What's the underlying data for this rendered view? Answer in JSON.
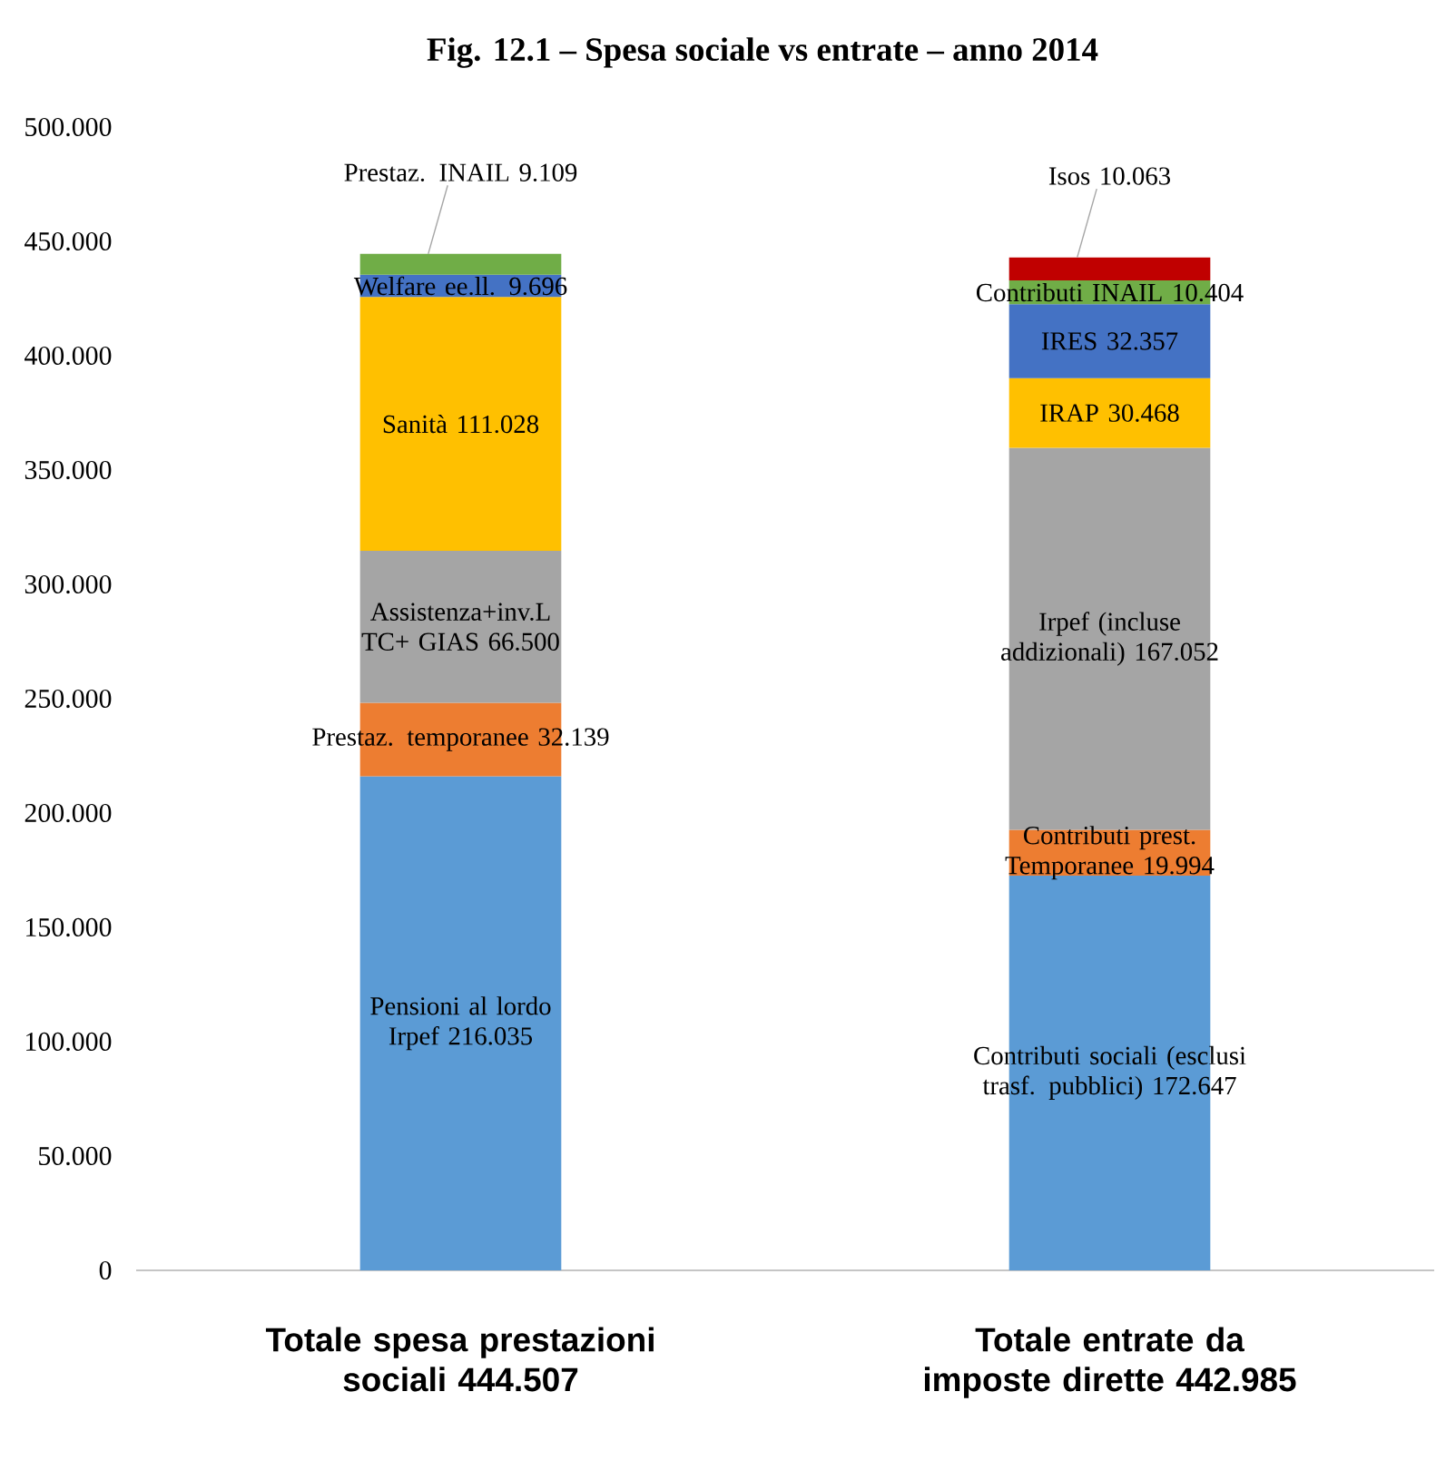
{
  "chart_data": {
    "type": "bar",
    "stacked": true,
    "title": "Fig. 12.1 – Spesa sociale vs entrate – anno 2014",
    "categories": [
      "Totale spesa prestazioni sociali 444.507",
      "Totale entrate da imposte dirette 442.985"
    ],
    "series": [
      {
        "color": "#5b9bd5",
        "values": [
          216.035,
          172.647
        ],
        "value_labels": [
          "Pensioni al lordo Irpef 216.035",
          "Contributi sociali (esclusi trasf. pubblici) 172.647"
        ]
      },
      {
        "color": "#ed7d31",
        "values": [
          32.139,
          19.994
        ],
        "value_labels": [
          "Prestaz. temporanee 32.139",
          "Contributi prest. Temporanee 19.994"
        ]
      },
      {
        "color": "#a5a5a5",
        "values": [
          66.5,
          167.052
        ],
        "value_labels": [
          "Assistenza+inv.L TC+ GIAS 66.500",
          "Irpef (incluse addizionali) 167.052"
        ]
      },
      {
        "color": "#ffc000",
        "values": [
          111.028,
          30.468
        ],
        "value_labels": [
          "Sanità 111.028",
          "IRAP 30.468"
        ]
      },
      {
        "color": "#4472c4",
        "values": [
          9.696,
          32.357
        ],
        "value_labels": [
          "Welfare ee.ll. 9.696",
          "IRES 32.357"
        ]
      },
      {
        "color": "#70ad47",
        "values": [
          9.109,
          10.404
        ],
        "value_labels": [
          "Prestaz. INAIL 9.109",
          "Contributi INAIL 10.404"
        ]
      },
      {
        "color": "#c00000",
        "values": [
          null,
          10.063
        ],
        "value_labels": [
          null,
          "Isos 10.063"
        ]
      }
    ],
    "ylim": [
      0,
      500
    ],
    "yticks": [
      0,
      {
        "value": 50,
        "label": "50.000"
      },
      {
        "value": 100,
        "label": "100.000"
      },
      {
        "value": 150,
        "label": "150.000"
      },
      {
        "value": 200,
        "label": "200.000"
      },
      {
        "value": 250,
        "label": "250.000"
      },
      {
        "value": 300,
        "label": "300.000"
      },
      {
        "value": 350,
        "label": "350.000"
      },
      {
        "value": 400,
        "label": "400.000"
      },
      {
        "value": 450,
        "label": "450.000"
      },
      {
        "value": 500,
        "label": "500.000"
      }
    ]
  }
}
